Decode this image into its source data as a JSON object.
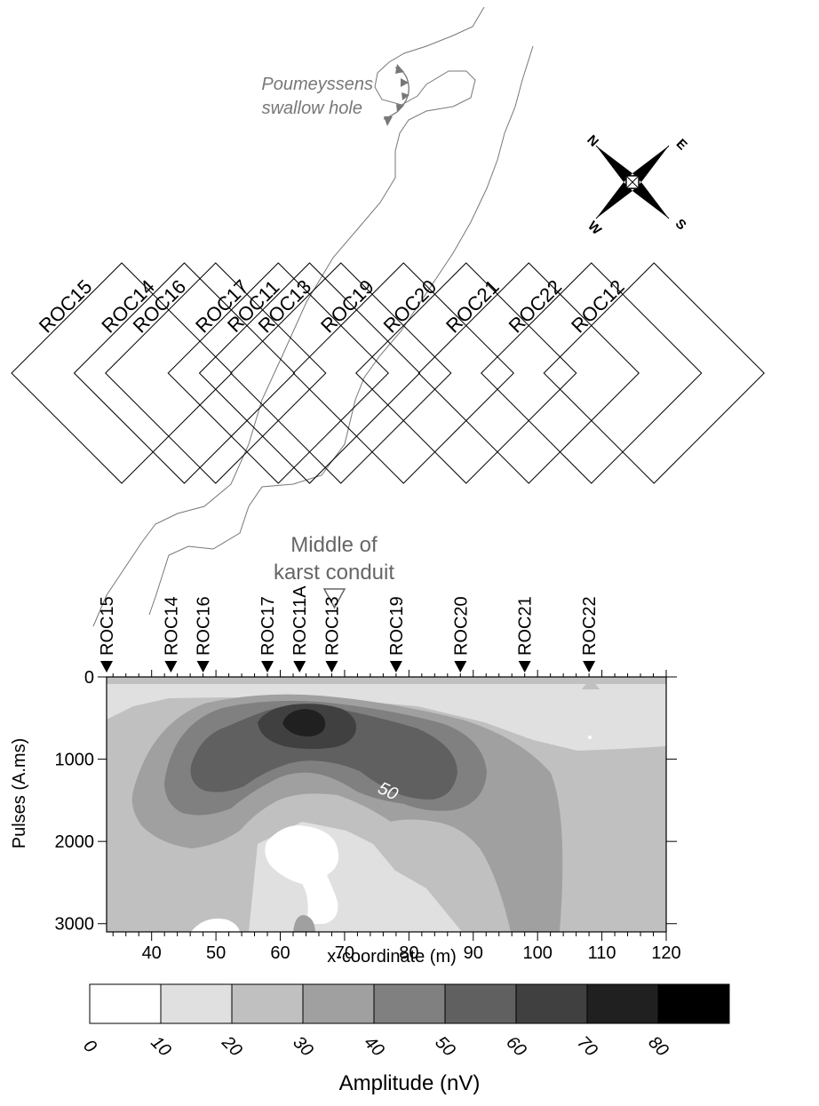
{
  "map": {
    "swallow_hole_label_1": "Poumeyssens",
    "swallow_hole_label_2": "swallow hole",
    "compass": {
      "n": "N",
      "e": "E",
      "s": "S",
      "w": "W"
    },
    "loops": [
      {
        "name": "ROC15",
        "x": 33
      },
      {
        "name": "ROC14",
        "x": 43
      },
      {
        "name": "ROC16",
        "x": 48
      },
      {
        "name": "ROC17",
        "x": 58
      },
      {
        "name": "ROC11",
        "x": 63
      },
      {
        "name": "ROC13",
        "x": 68
      },
      {
        "name": "ROC19",
        "x": 78
      },
      {
        "name": "ROC20",
        "x": 88
      },
      {
        "name": "ROC21",
        "x": 98
      },
      {
        "name": "ROC22",
        "x": 108
      },
      {
        "name": "ROC12",
        "x": 118
      }
    ]
  },
  "annotation": {
    "line1": "Middle of",
    "line2": "karst conduit",
    "x": 68
  },
  "chart_data": {
    "type": "heatmap",
    "xlabel": "x-coordinate (m)",
    "ylabel": "Pulses (A.ms)",
    "xlim": [
      33,
      120
    ],
    "ylim": [
      3100,
      0
    ],
    "x_ticks": [
      40,
      50,
      60,
      70,
      80,
      90,
      100,
      110,
      120
    ],
    "y_ticks": [
      0,
      1000,
      2000,
      3000
    ],
    "stations": [
      {
        "name": "ROC15",
        "x": 33
      },
      {
        "name": "ROC14",
        "x": 43
      },
      {
        "name": "ROC16",
        "x": 48
      },
      {
        "name": "ROC17",
        "x": 58
      },
      {
        "name": "ROC11A",
        "x": 63
      },
      {
        "name": "ROC13",
        "x": 68
      },
      {
        "name": "ROC19",
        "x": 78
      },
      {
        "name": "ROC20",
        "x": 88
      },
      {
        "name": "ROC21",
        "x": 98
      },
      {
        "name": "ROC22",
        "x": 108
      }
    ],
    "contour_label": "50",
    "peak": {
      "x": 63,
      "q": 700,
      "value": 75
    },
    "colorbar": {
      "title": "Amplitude (nV)",
      "levels": [
        0,
        10,
        20,
        30,
        40,
        50,
        60,
        70,
        80
      ],
      "colors": [
        "#ffffff",
        "#e0e0e0",
        "#c0c0c0",
        "#a0a0a0",
        "#808080",
        "#606060",
        "#404040",
        "#202020",
        "#000000"
      ]
    }
  }
}
